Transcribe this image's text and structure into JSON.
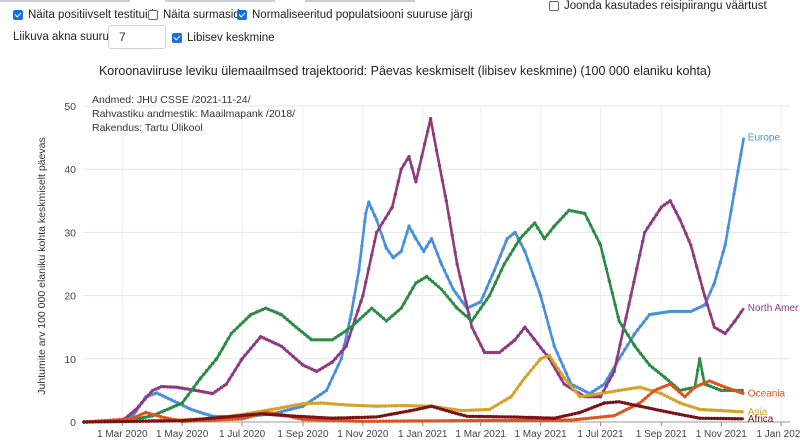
{
  "controls": {
    "show_positive": {
      "label": "Näita positiivselt testituid",
      "checked": true
    },
    "show_deaths": {
      "label": "Näita surmasid",
      "checked": false
    },
    "normalize": {
      "label": "Normaliseeritud populatsiooni suuruse järgi",
      "checked": true
    },
    "align_label": "Joonda kasutades reisipiirangu väärtust",
    "align_checked": false,
    "window_label": "Liikuva akna suurus:",
    "window_value": "7",
    "moving_avg": {
      "label": "Libisev keskmine",
      "checked": true
    }
  },
  "colors": {
    "accent": "#1a6fdc"
  },
  "chart_data": {
    "type": "line",
    "title": "Koroonaviiruse leviku ülemaailmsed trajektoorid: Päevas keskmiselt (libisev keskmine) (100 000 elaniku kohta)",
    "ylabel": "Juhtumite arv 100 000 elaniku kohta keskmiselt päevas",
    "annotations": [
      "Andmed: JHU CSSE /2021-11-24/",
      "Rahvastiku andmestik: Maailmapank /2018/",
      "Rakendus: Tartu Ülikool"
    ],
    "xlim": [
      "2020-01-22",
      "2022-01-10"
    ],
    "ylim": [
      0,
      50
    ],
    "yticks": [
      0,
      10,
      20,
      30,
      40,
      50
    ],
    "xticks": [
      {
        "date": "2020-03-01",
        "label": "1 Mar 2020"
      },
      {
        "date": "2020-05-01",
        "label": "1 May 2020"
      },
      {
        "date": "2020-07-01",
        "label": "1 Jul 2020"
      },
      {
        "date": "2020-09-01",
        "label": "1 Sep 2020"
      },
      {
        "date": "2020-11-01",
        "label": "1 Nov 2020"
      },
      {
        "date": "2021-01-01",
        "label": "1 Jan 2021"
      },
      {
        "date": "2021-03-01",
        "label": "1 Mar 2021"
      },
      {
        "date": "2021-05-01",
        "label": "1 May 2021"
      },
      {
        "date": "2021-07-01",
        "label": "1 Jul 2021"
      },
      {
        "date": "2021-09-01",
        "label": "1 Sep 2021"
      },
      {
        "date": "2021-11-01",
        "label": "1 Nov 2021"
      },
      {
        "date": "2022-01-01",
        "label": "1 Jan 2022"
      }
    ],
    "grid": true,
    "series": [
      {
        "name": "Europe",
        "color": "#4a90d9",
        "points": [
          [
            "2020-01-22",
            0
          ],
          [
            "2020-02-25",
            0.1
          ],
          [
            "2020-03-12",
            1
          ],
          [
            "2020-03-25",
            4
          ],
          [
            "2020-04-05",
            4.6
          ],
          [
            "2020-04-20",
            3.5
          ],
          [
            "2020-05-10",
            2
          ],
          [
            "2020-06-01",
            0.9
          ],
          [
            "2020-07-01",
            0.8
          ],
          [
            "2020-08-01",
            1.3
          ],
          [
            "2020-09-01",
            2.5
          ],
          [
            "2020-09-25",
            5
          ],
          [
            "2020-10-10",
            10
          ],
          [
            "2020-10-20",
            17
          ],
          [
            "2020-10-28",
            24
          ],
          [
            "2020-11-04",
            33
          ],
          [
            "2020-11-07",
            34.8
          ],
          [
            "2020-11-15",
            32
          ],
          [
            "2020-11-25",
            27.5
          ],
          [
            "2020-12-02",
            26
          ],
          [
            "2020-12-10",
            27
          ],
          [
            "2020-12-18",
            31
          ],
          [
            "2020-12-25",
            29
          ],
          [
            "2021-01-02",
            27
          ],
          [
            "2021-01-10",
            29
          ],
          [
            "2021-01-20",
            25
          ],
          [
            "2021-02-01",
            21
          ],
          [
            "2021-02-15",
            18
          ],
          [
            "2021-03-01",
            19
          ],
          [
            "2021-03-15",
            24
          ],
          [
            "2021-03-28",
            29
          ],
          [
            "2021-04-05",
            30
          ],
          [
            "2021-04-15",
            27
          ],
          [
            "2021-05-01",
            20
          ],
          [
            "2021-05-15",
            12
          ],
          [
            "2021-06-01",
            6
          ],
          [
            "2021-06-20",
            4.5
          ],
          [
            "2021-07-05",
            6
          ],
          [
            "2021-07-20",
            10
          ],
          [
            "2021-08-05",
            14
          ],
          [
            "2021-08-20",
            17
          ],
          [
            "2021-09-10",
            17.5
          ],
          [
            "2021-10-01",
            17.5
          ],
          [
            "2021-10-15",
            18.5
          ],
          [
            "2021-10-25",
            22
          ],
          [
            "2021-11-05",
            28
          ],
          [
            "2021-11-15",
            37
          ],
          [
            "2021-11-24",
            45
          ]
        ]
      },
      {
        "name": "North Amer",
        "color": "#8e3a80",
        "points": [
          [
            "2020-01-22",
            0
          ],
          [
            "2020-03-01",
            0.2
          ],
          [
            "2020-03-15",
            2
          ],
          [
            "2020-04-01",
            5
          ],
          [
            "2020-04-10",
            5.6
          ],
          [
            "2020-04-25",
            5.5
          ],
          [
            "2020-05-15",
            5
          ],
          [
            "2020-06-01",
            4.5
          ],
          [
            "2020-06-15",
            6
          ],
          [
            "2020-07-01",
            10
          ],
          [
            "2020-07-20",
            13.5
          ],
          [
            "2020-08-10",
            12
          ],
          [
            "2020-09-01",
            9
          ],
          [
            "2020-09-15",
            8
          ],
          [
            "2020-10-01",
            9.5
          ],
          [
            "2020-10-15",
            12
          ],
          [
            "2020-11-01",
            20
          ],
          [
            "2020-11-15",
            30
          ],
          [
            "2020-12-01",
            34
          ],
          [
            "2020-12-10",
            40
          ],
          [
            "2020-12-18",
            42
          ],
          [
            "2020-12-25",
            38
          ],
          [
            "2021-01-03",
            44
          ],
          [
            "2021-01-09",
            48
          ],
          [
            "2021-01-15",
            43
          ],
          [
            "2021-01-25",
            35
          ],
          [
            "2021-02-05",
            25
          ],
          [
            "2021-02-20",
            15
          ],
          [
            "2021-03-05",
            11
          ],
          [
            "2021-03-20",
            11
          ],
          [
            "2021-04-05",
            13
          ],
          [
            "2021-04-15",
            15
          ],
          [
            "2021-04-25",
            13
          ],
          [
            "2021-05-10",
            10
          ],
          [
            "2021-05-25",
            6
          ],
          [
            "2021-06-15",
            4
          ],
          [
            "2021-07-01",
            4
          ],
          [
            "2021-07-15",
            8
          ],
          [
            "2021-08-01",
            20
          ],
          [
            "2021-08-15",
            30
          ],
          [
            "2021-09-01",
            34
          ],
          [
            "2021-09-10",
            35
          ],
          [
            "2021-09-20",
            32
          ],
          [
            "2021-10-01",
            28
          ],
          [
            "2021-10-15",
            20
          ],
          [
            "2021-10-25",
            15
          ],
          [
            "2021-11-05",
            14
          ],
          [
            "2021-11-15",
            16
          ],
          [
            "2021-11-24",
            18
          ]
        ]
      },
      {
        "name": "",
        "color": "#2e8b46",
        "points": [
          [
            "2020-01-22",
            0
          ],
          [
            "2020-03-10",
            0.3
          ],
          [
            "2020-04-01",
            1
          ],
          [
            "2020-05-01",
            3
          ],
          [
            "2020-05-20",
            7
          ],
          [
            "2020-06-05",
            10
          ],
          [
            "2020-06-20",
            14
          ],
          [
            "2020-07-10",
            17
          ],
          [
            "2020-07-25",
            18
          ],
          [
            "2020-08-10",
            17
          ],
          [
            "2020-08-25",
            15
          ],
          [
            "2020-09-10",
            13
          ],
          [
            "2020-10-01",
            13
          ],
          [
            "2020-10-20",
            15
          ],
          [
            "2020-11-10",
            18
          ],
          [
            "2020-11-25",
            16
          ],
          [
            "2020-12-10",
            18
          ],
          [
            "2020-12-25",
            22
          ],
          [
            "2021-01-05",
            23
          ],
          [
            "2021-01-20",
            21
          ],
          [
            "2021-02-05",
            18
          ],
          [
            "2021-02-20",
            16
          ],
          [
            "2021-03-10",
            20
          ],
          [
            "2021-03-25",
            25
          ],
          [
            "2021-04-10",
            29
          ],
          [
            "2021-04-25",
            31.5
          ],
          [
            "2021-05-05",
            29
          ],
          [
            "2021-05-15",
            31
          ],
          [
            "2021-05-30",
            33.5
          ],
          [
            "2021-06-15",
            33
          ],
          [
            "2021-07-01",
            28
          ],
          [
            "2021-07-20",
            16
          ],
          [
            "2021-08-05",
            12
          ],
          [
            "2021-08-20",
            9
          ],
          [
            "2021-09-05",
            7
          ],
          [
            "2021-09-20",
            5
          ],
          [
            "2021-10-05",
            5.5
          ],
          [
            "2021-10-10",
            10
          ],
          [
            "2021-10-15",
            6
          ],
          [
            "2021-11-01",
            5
          ],
          [
            "2021-11-24",
            5
          ]
        ]
      },
      {
        "name": "Asia",
        "color": "#d4a32a",
        "points": [
          [
            "2020-01-22",
            0
          ],
          [
            "2020-04-01",
            0.2
          ],
          [
            "2020-06-01",
            0.5
          ],
          [
            "2020-07-01",
            1.2
          ],
          [
            "2020-08-01",
            2
          ],
          [
            "2020-09-01",
            2.9
          ],
          [
            "2020-09-20",
            3
          ],
          [
            "2020-10-15",
            2.7
          ],
          [
            "2020-11-15",
            2.5
          ],
          [
            "2020-12-10",
            2.6
          ],
          [
            "2021-01-10",
            2.5
          ],
          [
            "2021-02-10",
            1.8
          ],
          [
            "2021-03-10",
            2
          ],
          [
            "2021-04-01",
            4
          ],
          [
            "2021-04-15",
            7
          ],
          [
            "2021-05-01",
            10
          ],
          [
            "2021-05-10",
            10.5
          ],
          [
            "2021-05-25",
            7
          ],
          [
            "2021-06-10",
            4
          ],
          [
            "2021-07-01",
            4.5
          ],
          [
            "2021-07-20",
            5
          ],
          [
            "2021-08-10",
            5.5
          ],
          [
            "2021-09-01",
            4.5
          ],
          [
            "2021-09-20",
            3
          ],
          [
            "2021-10-10",
            2
          ],
          [
            "2021-11-24",
            1.6
          ]
        ]
      },
      {
        "name": "Oceania",
        "color": "#d9561c",
        "points": [
          [
            "2020-01-22",
            0
          ],
          [
            "2020-03-10",
            0.5
          ],
          [
            "2020-03-25",
            1.5
          ],
          [
            "2020-04-10",
            0.8
          ],
          [
            "2020-05-01",
            0.1
          ],
          [
            "2020-07-01",
            0.5
          ],
          [
            "2020-07-25",
            1.5
          ],
          [
            "2020-08-10",
            1.2
          ],
          [
            "2020-09-01",
            0.4
          ],
          [
            "2020-11-01",
            0.1
          ],
          [
            "2021-02-01",
            0.2
          ],
          [
            "2021-06-01",
            0.3
          ],
          [
            "2021-07-15",
            1
          ],
          [
            "2021-08-10",
            3
          ],
          [
            "2021-08-25",
            5
          ],
          [
            "2021-09-10",
            6
          ],
          [
            "2021-09-25",
            4
          ],
          [
            "2021-10-05",
            5.5
          ],
          [
            "2021-10-20",
            6.5
          ],
          [
            "2021-11-05",
            5.5
          ],
          [
            "2021-11-24",
            4.5
          ]
        ]
      },
      {
        "name": "Africa",
        "color": "#7a1216",
        "points": [
          [
            "2020-01-22",
            0
          ],
          [
            "2020-05-01",
            0.2
          ],
          [
            "2020-06-15",
            0.8
          ],
          [
            "2020-07-20",
            1.3
          ],
          [
            "2020-08-15",
            1
          ],
          [
            "2020-10-01",
            0.6
          ],
          [
            "2020-11-15",
            0.8
          ],
          [
            "2020-12-20",
            1.8
          ],
          [
            "2021-01-10",
            2.5
          ],
          [
            "2021-01-25",
            1.8
          ],
          [
            "2021-02-15",
            0.9
          ],
          [
            "2021-04-01",
            0.8
          ],
          [
            "2021-05-15",
            0.6
          ],
          [
            "2021-06-10",
            1.5
          ],
          [
            "2021-07-05",
            3
          ],
          [
            "2021-07-20",
            3.2
          ],
          [
            "2021-08-10",
            2.5
          ],
          [
            "2021-09-10",
            1.5
          ],
          [
            "2021-10-10",
            0.6
          ],
          [
            "2021-11-24",
            0.5
          ]
        ]
      }
    ]
  }
}
